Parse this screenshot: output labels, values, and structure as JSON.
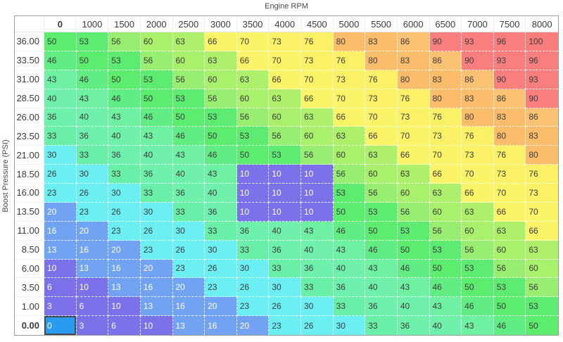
{
  "axes": {
    "x_title": "Engine RPM",
    "y_title": "Boost Pressure (PSI)"
  },
  "table": {
    "col_headers": [
      "0",
      "1000",
      "1500",
      "2000",
      "2500",
      "3000",
      "3500",
      "4000",
      "4500",
      "5000",
      "5500",
      "6000",
      "6500",
      "7000",
      "7500",
      "8000"
    ],
    "row_headers": [
      "36.00",
      "33.50",
      "31.00",
      "28.50",
      "26.00",
      "23.50",
      "21.00",
      "18.50",
      "16.00",
      "13.50",
      "11.00",
      "8.50",
      "6.00",
      "3.50",
      "1.00",
      "0.00"
    ],
    "rows": [
      [
        50,
        53,
        56,
        60,
        63,
        66,
        70,
        73,
        76,
        80,
        83,
        86,
        90,
        93,
        96,
        100
      ],
      [
        46,
        50,
        53,
        56,
        60,
        63,
        66,
        70,
        73,
        76,
        80,
        83,
        86,
        90,
        93,
        96
      ],
      [
        43,
        46,
        50,
        53,
        56,
        60,
        63,
        66,
        70,
        73,
        76,
        80,
        83,
        86,
        90,
        93
      ],
      [
        40,
        43,
        46,
        50,
        53,
        56,
        60,
        63,
        66,
        70,
        73,
        76,
        80,
        83,
        86,
        90
      ],
      [
        36,
        40,
        43,
        46,
        50,
        53,
        56,
        60,
        63,
        66,
        70,
        73,
        76,
        80,
        83,
        86
      ],
      [
        33,
        36,
        40,
        43,
        46,
        50,
        53,
        56,
        60,
        63,
        66,
        70,
        73,
        76,
        80,
        83
      ],
      [
        30,
        33,
        36,
        40,
        43,
        46,
        50,
        53,
        56,
        60,
        63,
        66,
        70,
        73,
        76,
        80
      ],
      [
        26,
        30,
        33,
        36,
        40,
        43,
        10,
        10,
        10,
        56,
        60,
        63,
        66,
        70,
        73,
        76
      ],
      [
        23,
        26,
        30,
        33,
        36,
        40,
        10,
        10,
        10,
        53,
        56,
        60,
        63,
        66,
        70,
        73
      ],
      [
        20,
        23,
        26,
        30,
        33,
        36,
        10,
        10,
        10,
        50,
        53,
        56,
        60,
        63,
        66,
        70
      ],
      [
        16,
        20,
        23,
        26,
        30,
        33,
        36,
        40,
        43,
        46,
        50,
        53,
        56,
        60,
        63,
        66
      ],
      [
        13,
        16,
        20,
        23,
        26,
        30,
        33,
        36,
        40,
        43,
        46,
        50,
        53,
        56,
        60,
        63
      ],
      [
        10,
        13,
        16,
        20,
        23,
        26,
        30,
        33,
        36,
        40,
        43,
        46,
        50,
        53,
        56,
        60
      ],
      [
        6,
        10,
        13,
        16,
        20,
        23,
        26,
        30,
        33,
        36,
        40,
        43,
        46,
        50,
        53,
        56
      ],
      [
        3,
        6,
        10,
        13,
        16,
        20,
        23,
        26,
        30,
        33,
        36,
        40,
        43,
        46,
        50,
        53
      ],
      [
        0,
        3,
        6,
        10,
        13,
        16,
        20,
        23,
        26,
        30,
        33,
        36,
        40,
        43,
        46,
        50
      ]
    ],
    "selected": {
      "row_index": 15,
      "col_index": 0,
      "row_label": "0.00",
      "col_label": "0",
      "value": 0
    }
  },
  "colors": {
    "value_colors": {
      "0": "#2B9BF1",
      "3": "#7B72E9",
      "6": "#7B72E9",
      "10": "#7B72E9",
      "13": "#71A3F2",
      "16": "#71A3F2",
      "20": "#71A3F2",
      "23": "#6BEFF2",
      "26": "#6BEFF2",
      "30": "#6BEFF2",
      "33": "#69EFA8",
      "36": "#6EF1AD",
      "40": "#6FF1AB",
      "43": "#6FF1A4",
      "46": "#61ED83",
      "50": "#5CEC6E",
      "53": "#5DEC71",
      "56": "#97EE70",
      "60": "#A9F06C",
      "63": "#ADF06C",
      "66": "#FBF368",
      "70": "#FBF368",
      "73": "#FAF167",
      "76": "#FAF167",
      "80": "#FBBD6B",
      "83": "#FBBD6B",
      "86": "#FBC273",
      "90": "#F97F7F",
      "93": "#F97F7F",
      "96": "#F97F7F",
      "100": "#F97D7B"
    },
    "light_text_max_value": 20,
    "text_dark": "#3C3C3C",
    "text_light": "#FFFFFF",
    "selected_border": "#444444",
    "table_border": "#9B9B9B",
    "background": "#FFFFFF"
  }
}
